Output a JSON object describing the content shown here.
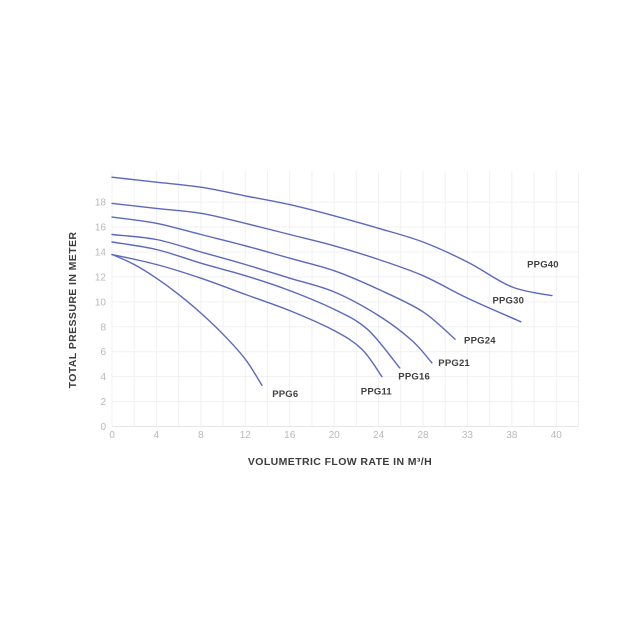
{
  "page": {
    "background": "#ffffff",
    "description": "Pump performance curves chart on plain white background"
  },
  "chart_data": {
    "type": "line",
    "title": "",
    "xlabel": "VOLUMETRIC FLOW RATE IN M³/H",
    "ylabel": "TOTAL PRESSURE IN METER",
    "x_ticks": [
      0,
      4,
      8,
      12,
      16,
      20,
      24,
      28,
      33,
      38,
      40
    ],
    "x_ticks_note": "ticks are evenly spaced on screen (non-linear axis)",
    "y_ticks": [
      0,
      2,
      4,
      6,
      8,
      10,
      12,
      14,
      16,
      18
    ],
    "ylim": [
      0,
      20.5
    ],
    "grid": true,
    "legend_position": "inline-labels-at-curve-ends",
    "colors": {
      "curve": "#5c68c0",
      "grid": "#f1f1f3",
      "baseline": "#e7e7e9",
      "tick_label": "#b8b8ba",
      "axis_title": "#3c3c3c",
      "series_label": "#404040"
    },
    "series": [
      {
        "name": "PPG40",
        "points": [
          [
            0,
            20.0
          ],
          [
            4,
            19.6
          ],
          [
            8,
            19.2
          ],
          [
            12,
            18.5
          ],
          [
            16,
            17.8
          ],
          [
            20,
            16.9
          ],
          [
            24,
            15.9
          ],
          [
            28,
            14.8
          ],
          [
            33,
            13.2
          ],
          [
            38,
            11.2
          ],
          [
            39.8,
            10.5
          ]
        ],
        "label_at": [
          39.4,
          13.0
        ]
      },
      {
        "name": "PPG30",
        "points": [
          [
            0,
            17.9
          ],
          [
            4,
            17.5
          ],
          [
            8,
            17.1
          ],
          [
            12,
            16.3
          ],
          [
            16,
            15.4
          ],
          [
            20,
            14.5
          ],
          [
            24,
            13.4
          ],
          [
            28,
            12.1
          ],
          [
            33,
            10.3
          ],
          [
            38.4,
            8.4
          ]
        ],
        "label_at": [
          37.6,
          10.1
        ]
      },
      {
        "name": "PPG24",
        "points": [
          [
            0,
            16.8
          ],
          [
            4,
            16.3
          ],
          [
            8,
            15.4
          ],
          [
            12,
            14.5
          ],
          [
            16,
            13.5
          ],
          [
            20,
            12.5
          ],
          [
            24,
            11.0
          ],
          [
            28,
            9.2
          ],
          [
            31.6,
            7.0
          ]
        ],
        "label_at": [
          34.4,
          6.9
        ]
      },
      {
        "name": "PPG21",
        "points": [
          [
            0,
            15.4
          ],
          [
            4,
            15.0
          ],
          [
            8,
            14.0
          ],
          [
            12,
            13.0
          ],
          [
            16,
            11.9
          ],
          [
            20,
            10.8
          ],
          [
            24,
            8.9
          ],
          [
            27,
            6.9
          ],
          [
            29,
            5.1
          ]
        ],
        "label_at": [
          31.5,
          5.1
        ]
      },
      {
        "name": "PPG16",
        "points": [
          [
            0,
            14.8
          ],
          [
            4,
            14.2
          ],
          [
            8,
            13.1
          ],
          [
            12,
            12.1
          ],
          [
            16,
            10.9
          ],
          [
            20,
            9.4
          ],
          [
            23,
            7.8
          ],
          [
            25.9,
            4.7
          ]
        ],
        "label_at": [
          27.2,
          4.0
        ]
      },
      {
        "name": "PPG11",
        "points": [
          [
            0,
            13.8
          ],
          [
            4,
            13.0
          ],
          [
            8,
            11.9
          ],
          [
            12,
            10.6
          ],
          [
            16,
            9.3
          ],
          [
            20,
            7.7
          ],
          [
            22.5,
            6.2
          ],
          [
            24.3,
            4.0
          ]
        ],
        "label_at": [
          23.8,
          2.8
        ]
      },
      {
        "name": "PPG6",
        "points": [
          [
            0,
            13.8
          ],
          [
            2,
            13.0
          ],
          [
            4,
            11.9
          ],
          [
            6,
            10.6
          ],
          [
            8,
            9.1
          ],
          [
            10,
            7.4
          ],
          [
            12,
            5.4
          ],
          [
            13.5,
            3.3
          ]
        ],
        "label_at": [
          15.6,
          2.6
        ]
      }
    ]
  }
}
